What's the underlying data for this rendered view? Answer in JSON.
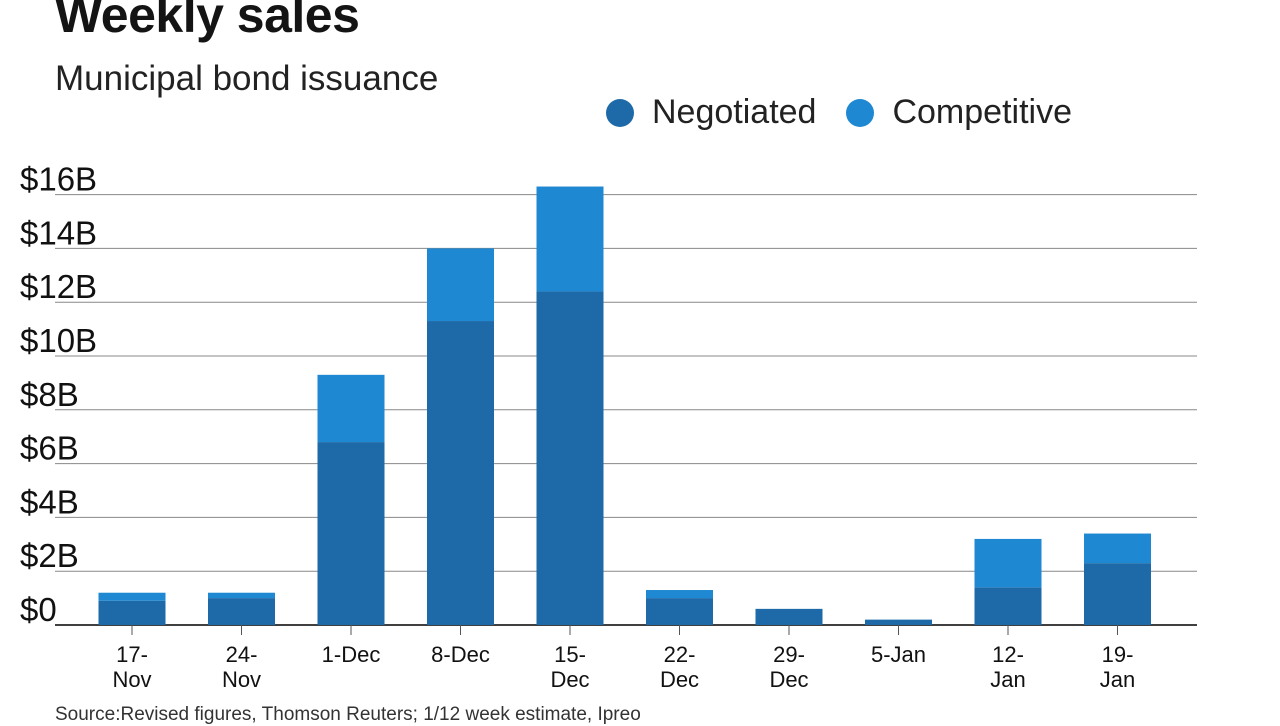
{
  "title": "Weekly sales",
  "subtitle": "Municipal bond issuance",
  "source": "Source:Revised figures, Thomson Reuters; 1/12 week estimate, Ipreo",
  "colors": {
    "negotiated": "#1e6aa8",
    "competitive": "#1f88d2",
    "grid": "#888888",
    "axis": "#000000"
  },
  "chart_data": {
    "type": "bar",
    "stacked": true,
    "title": "Weekly sales",
    "subtitle": "Municipal bond issuance",
    "categories": [
      [
        "17-",
        "Nov"
      ],
      [
        "24-",
        "Nov"
      ],
      [
        "1-Dec"
      ],
      [
        "8-Dec"
      ],
      [
        "15-",
        "Dec"
      ],
      [
        "22-",
        "Dec"
      ],
      [
        "29-",
        "Dec"
      ],
      [
        "5-Jan"
      ],
      [
        "12-",
        "Jan"
      ],
      [
        "19-",
        "Jan"
      ]
    ],
    "series": [
      {
        "name": "Negotiated",
        "values": [
          0.9,
          1.0,
          6.8,
          11.3,
          12.4,
          1.0,
          0.6,
          0.2,
          1.4,
          2.3
        ]
      },
      {
        "name": "Competitive",
        "values": [
          0.3,
          0.2,
          2.5,
          2.7,
          3.9,
          0.3,
          0.0,
          0.0,
          1.8,
          1.1
        ]
      }
    ],
    "yticks": [
      0,
      2,
      4,
      6,
      8,
      10,
      12,
      14,
      16
    ],
    "ytick_labels": [
      "$0",
      "$2B",
      "$4B",
      "$6B",
      "$8B",
      "$10B",
      "$12B",
      "$14B",
      "$16B"
    ],
    "ylim": [
      0,
      16
    ],
    "grid": true,
    "legend_position": "top-right"
  }
}
